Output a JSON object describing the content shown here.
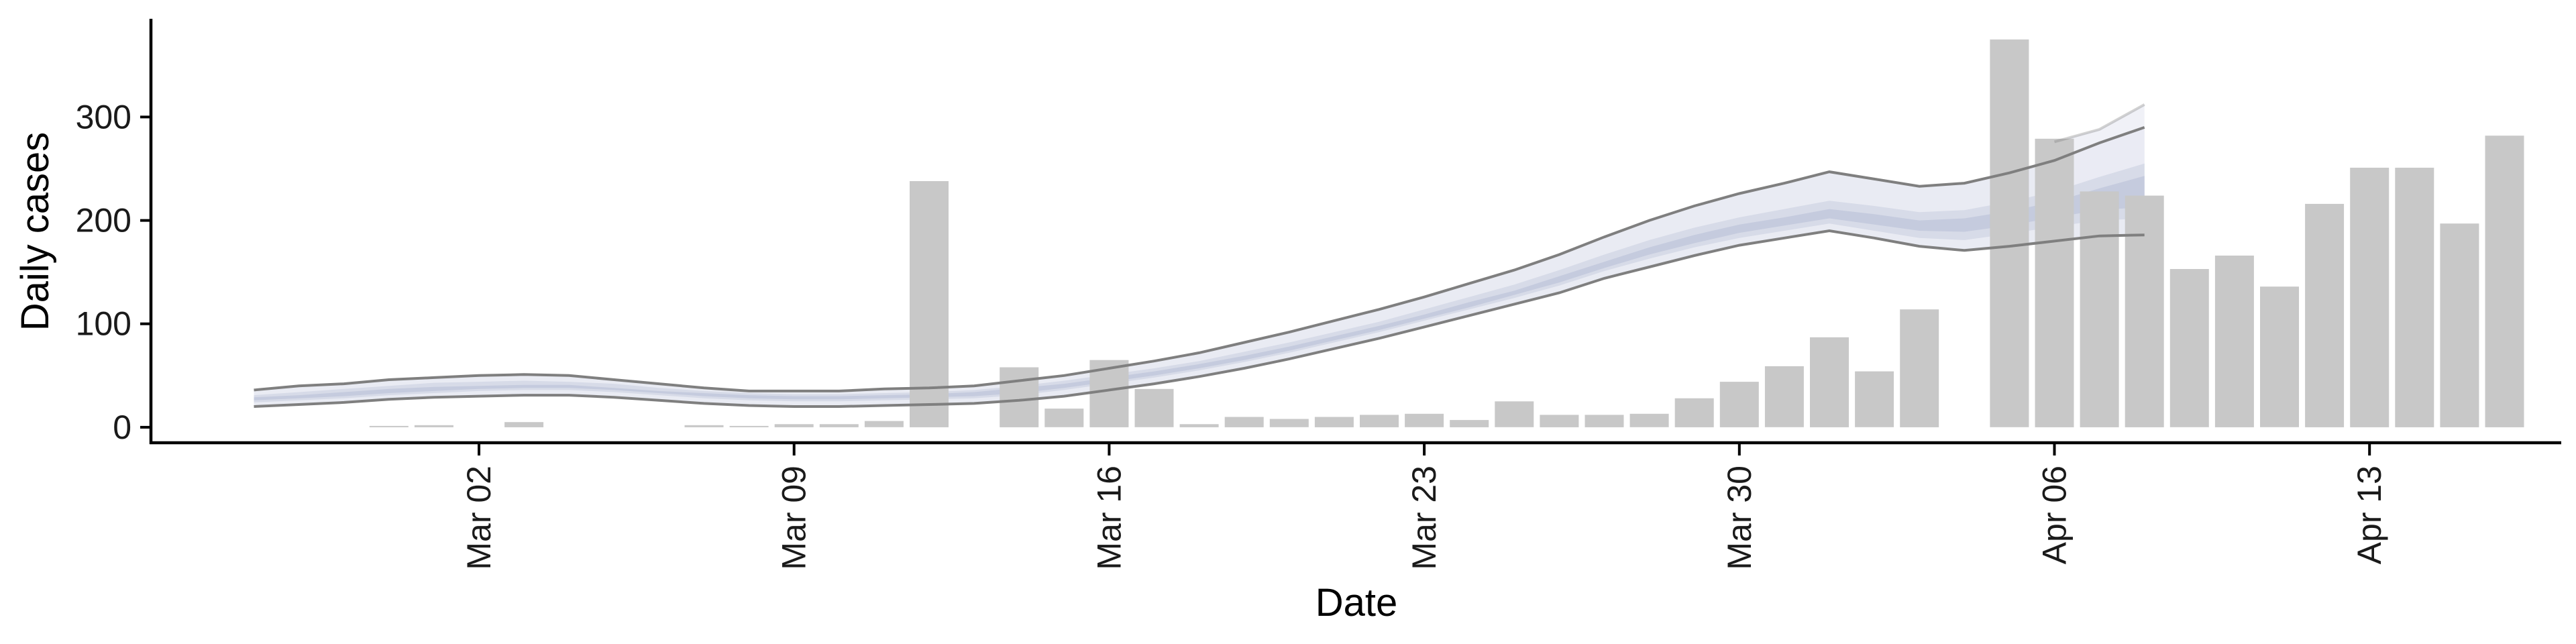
{
  "chart_data": {
    "type": "bar",
    "xlabel": "Date",
    "ylabel": "Daily cases",
    "x_start": "Feb 26",
    "ylim": [
      -15,
      395
    ],
    "y_ticks": [
      0,
      100,
      200,
      300
    ],
    "x_tick_labels": [
      "Mar 02",
      "Mar 09",
      "Mar 16",
      "Mar 23",
      "Mar 30",
      "Apr 06",
      "Apr 13"
    ],
    "x_tick_dates": [
      "Mar 02",
      "Mar 09",
      "Mar 16",
      "Mar 23",
      "Mar 30",
      "Apr 06",
      "Apr 13"
    ],
    "grid": false,
    "legend": "none",
    "colors": {
      "bars": "#c8c8c8",
      "band_outer": "#e9ebf3",
      "band_mid": "#d7dbe8",
      "band_inner": "#c5cbde",
      "bounds": "#7f7f7f"
    },
    "bars": {
      "dates": [
        "Feb 29",
        "Mar 01",
        "Mar 02",
        "Mar 03",
        "Mar 04",
        "Mar 05",
        "Mar 06",
        "Mar 07",
        "Mar 08",
        "Mar 09",
        "Mar 10",
        "Mar 11",
        "Mar 12",
        "Mar 13",
        "Mar 14",
        "Mar 15",
        "Mar 16",
        "Mar 17",
        "Mar 18",
        "Mar 19",
        "Mar 20",
        "Mar 21",
        "Mar 22",
        "Mar 23",
        "Mar 24",
        "Mar 25",
        "Mar 26",
        "Mar 27",
        "Mar 28",
        "Mar 29",
        "Mar 30",
        "Mar 31",
        "Apr 01",
        "Apr 02",
        "Apr 03",
        "Apr 04",
        "Apr 05",
        "Apr 06",
        "Apr 07",
        "Apr 08",
        "Apr 09",
        "Apr 10",
        "Apr 11",
        "Apr 12",
        "Apr 13",
        "Apr 14",
        "Apr 15",
        "Apr 16"
      ],
      "values": [
        1,
        2,
        0,
        5,
        0,
        0,
        0,
        2,
        1,
        3,
        3,
        6,
        238,
        0,
        58,
        18,
        65,
        37,
        3,
        10,
        8,
        10,
        12,
        13,
        7,
        25,
        12,
        12,
        13,
        28,
        44,
        59,
        87,
        54,
        114,
        0,
        375,
        279,
        228,
        224,
        153,
        166,
        136,
        216,
        251,
        251,
        197,
        282
      ]
    },
    "band": {
      "dates": [
        "Feb 26",
        "Feb 27",
        "Feb 28",
        "Feb 29",
        "Mar 01",
        "Mar 02",
        "Mar 03",
        "Mar 04",
        "Mar 05",
        "Mar 06",
        "Mar 07",
        "Mar 08",
        "Mar 09",
        "Mar 10",
        "Mar 11",
        "Mar 12",
        "Mar 13",
        "Mar 14",
        "Mar 15",
        "Mar 16",
        "Mar 17",
        "Mar 18",
        "Mar 19",
        "Mar 20",
        "Mar 21",
        "Mar 22",
        "Mar 23",
        "Mar 24",
        "Mar 25",
        "Mar 26",
        "Mar 27",
        "Mar 28",
        "Mar 29",
        "Mar 30",
        "Mar 31",
        "Apr 01",
        "Apr 02",
        "Apr 03",
        "Apr 04",
        "Apr 05",
        "Apr 06",
        "Apr 07",
        "Apr 08"
      ],
      "upper": [
        36,
        40,
        42,
        46,
        48,
        50,
        51,
        50,
        46,
        42,
        38,
        35,
        35,
        35,
        37,
        38,
        40,
        45,
        50,
        57,
        64,
        72,
        82,
        92,
        103,
        114,
        126,
        139,
        152,
        167,
        184,
        200,
        214,
        226,
        236,
        247,
        240,
        233,
        236,
        246,
        258,
        275,
        290
      ],
      "lower": [
        20,
        22,
        24,
        27,
        29,
        30,
        31,
        31,
        29,
        26,
        23,
        21,
        20,
        20,
        21,
        22,
        23,
        26,
        30,
        36,
        42,
        49,
        57,
        66,
        76,
        86,
        97,
        108,
        119,
        130,
        144,
        155,
        166,
        176,
        183,
        190,
        183,
        175,
        171,
        175,
        180,
        185,
        186
      ],
      "mid_upper": [
        31,
        34,
        37,
        40,
        43,
        44,
        45,
        44,
        42,
        38,
        35,
        33,
        32,
        32,
        33,
        34,
        36,
        40,
        45,
        51,
        57,
        64,
        73,
        82,
        92,
        102,
        114,
        126,
        138,
        152,
        167,
        181,
        193,
        203,
        211,
        219,
        214,
        208,
        210,
        218,
        228,
        242,
        255
      ],
      "mid_lower": [
        24,
        26,
        28,
        31,
        33,
        35,
        36,
        36,
        34,
        31,
        28,
        26,
        25,
        25,
        26,
        27,
        28,
        31,
        36,
        42,
        48,
        55,
        63,
        72,
        82,
        92,
        103,
        114,
        125,
        137,
        151,
        163,
        174,
        183,
        190,
        197,
        190,
        183,
        181,
        187,
        194,
        200,
        202
      ],
      "inner_upper": [
        29,
        31,
        34,
        37,
        39,
        40,
        41,
        41,
        38,
        35,
        33,
        31,
        30,
        30,
        31,
        32,
        34,
        38,
        42,
        48,
        54,
        61,
        69,
        78,
        88,
        98,
        109,
        121,
        132,
        146,
        160,
        174,
        186,
        196,
        203,
        211,
        206,
        200,
        202,
        209,
        218,
        231,
        243
      ],
      "inner_lower": [
        26,
        28,
        30,
        33,
        35,
        37,
        38,
        38,
        36,
        33,
        30,
        28,
        27,
        27,
        28,
        29,
        30,
        33,
        38,
        44,
        50,
        57,
        65,
        74,
        84,
        94,
        105,
        116,
        128,
        140,
        154,
        167,
        178,
        188,
        195,
        202,
        196,
        190,
        189,
        195,
        203,
        210,
        213
      ],
      "extension": {
        "dates": [
          "Apr 06",
          "Apr 07",
          "Apr 08"
        ],
        "upper": [
          276,
          288,
          312
        ],
        "lower": [
          230,
          232,
          228
        ]
      }
    }
  }
}
